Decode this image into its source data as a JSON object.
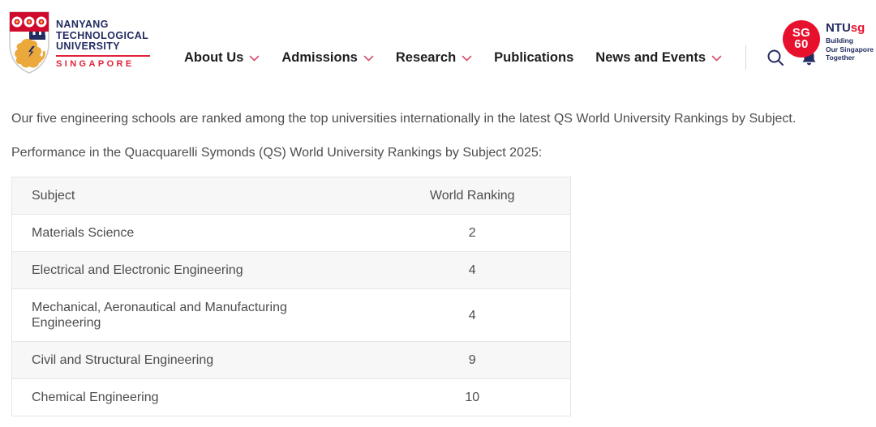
{
  "header": {
    "logo": {
      "line1": "NANYANG",
      "line2": "TECHNOLOGICAL",
      "line3": "UNIVERSITY",
      "country": "SINGAPORE"
    },
    "nav": [
      {
        "label": "About Us",
        "has_dropdown": true
      },
      {
        "label": "Admissions",
        "has_dropdown": true
      },
      {
        "label": "Research",
        "has_dropdown": true
      },
      {
        "label": "Publications",
        "has_dropdown": false
      },
      {
        "label": "News and Events",
        "has_dropdown": true
      }
    ],
    "sg60": {
      "line1": "SG",
      "line2": "60"
    },
    "ntusg": {
      "brand_ntu": "NTU",
      "brand_sg": "sg",
      "tagline_line1": "Building",
      "tagline_line2": "Our Singapore",
      "tagline_line3": "Together"
    }
  },
  "content": {
    "paragraph1": "Our five engineering schools are ranked among the top universities internationally in the latest QS World University Rankings by Subject.",
    "paragraph2": "Performance in the Quacquarelli Symonds (QS) World University Rankings by Subject 2025:",
    "table": {
      "columns": [
        "Subject",
        "World Ranking"
      ],
      "rows": [
        {
          "subject": "Materials Science",
          "ranking": "2"
        },
        {
          "subject": "Electrical and Electronic Engineering",
          "ranking": "4"
        },
        {
          "subject": "Mechanical, Aeronautical and Manufacturing Engineering",
          "ranking": "4"
        },
        {
          "subject": "Civil and Structural Engineering",
          "ranking": "9"
        },
        {
          "subject": "Chemical Engineering",
          "ranking": "10"
        }
      ]
    }
  },
  "colors": {
    "brand_navy": "#232c61",
    "brand_red": "#e2223b",
    "nav_text": "#1e1e21",
    "chevron_pink": "#d94f6b",
    "sg60_red": "#e8112d",
    "body_text": "#4d4d4f",
    "table_stripe": "#f7f7f7",
    "table_border": "#e6e6e6"
  }
}
